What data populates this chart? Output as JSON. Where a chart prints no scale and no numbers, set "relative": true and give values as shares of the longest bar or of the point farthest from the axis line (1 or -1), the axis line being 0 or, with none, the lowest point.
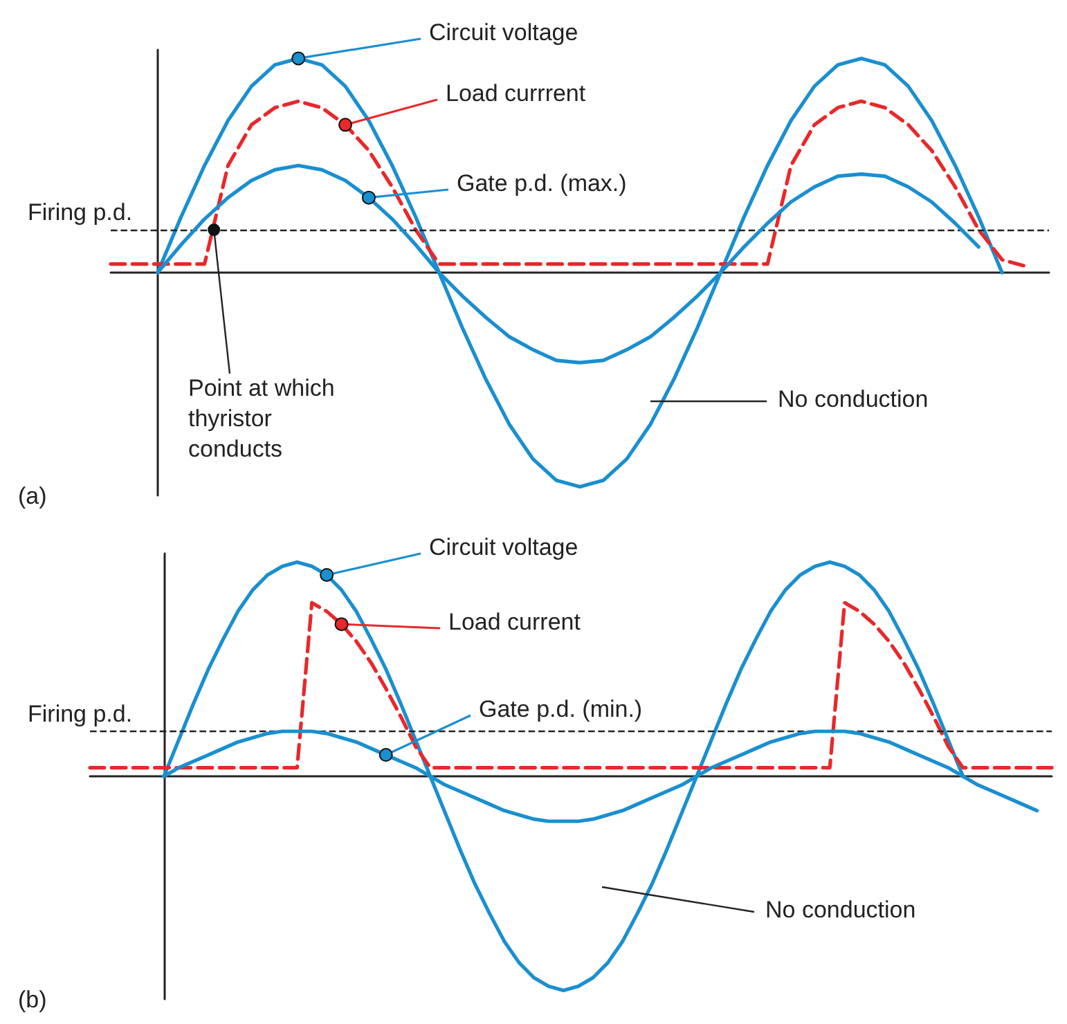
{
  "chart_data": [
    {
      "type": "line",
      "title": "(a)",
      "relative": true,
      "marker": "none",
      "categories": [
        null,
        null,
        null,
        null,
        null,
        null,
        null,
        null,
        null,
        null,
        null,
        null,
        null,
        null,
        null,
        null,
        null,
        null,
        null,
        null,
        null,
        null,
        null,
        null,
        null,
        null,
        null,
        null,
        null,
        null,
        null,
        null,
        null,
        null,
        null,
        null,
        null,
        null,
        null,
        null,
        null
      ],
      "series": [
        {
          "name": "Circuit voltage",
          "color": "#1a8fd0",
          "line_style": "solid",
          "values": [
            null,
            null,
            0,
            0.26,
            0.5,
            0.71,
            0.87,
            0.97,
            1,
            0.97,
            0.87,
            0.71,
            0.5,
            0.26,
            0,
            -0.26,
            -0.5,
            -0.71,
            -0.87,
            -0.97,
            -1,
            -0.97,
            -0.87,
            -0.71,
            -0.5,
            -0.26,
            0,
            0.26,
            0.5,
            0.71,
            0.87,
            0.97,
            1,
            0.97,
            0.87,
            0.71,
            0.5,
            0.26,
            0,
            null,
            null
          ]
        },
        {
          "name": "Load currrent",
          "color": "#e8282a",
          "line_style": "dashed",
          "values": [
            0.04,
            0.04,
            0.04,
            0.04,
            0.04,
            0.5,
            0.69,
            0.77,
            0.8,
            0.77,
            0.69,
            0.57,
            0.4,
            0.2,
            0.04,
            0.04,
            0.04,
            0.04,
            0.04,
            0.04,
            0.04,
            0.04,
            0.04,
            0.04,
            0.04,
            0.04,
            0.04,
            0.04,
            0.04,
            0.5,
            0.69,
            0.77,
            0.8,
            0.77,
            0.69,
            0.57,
            0.4,
            0.2,
            0.06,
            0.03,
            null
          ]
        },
        {
          "name": "Gate p.d. (max.)",
          "color": "#1a8fd0",
          "line_style": "solid",
          "values": [
            null,
            null,
            0,
            0.13,
            0.25,
            0.35,
            0.43,
            0.48,
            0.5,
            0.48,
            0.43,
            0.35,
            0.25,
            0.13,
            0,
            -0.11,
            -0.21,
            -0.3,
            -0.36,
            -0.41,
            -0.42,
            -0.41,
            -0.36,
            -0.3,
            -0.21,
            -0.11,
            0,
            0.12,
            0.23,
            0.33,
            0.4,
            0.45,
            0.46,
            0.45,
            0.4,
            0.33,
            0.23,
            0.12,
            null,
            null,
            null
          ]
        }
      ],
      "ref_lines": [
        {
          "axis": "y",
          "value": 0.2,
          "label": "Firing p.d.",
          "color": "#222222",
          "line_style": "dashed"
        }
      ],
      "annotations": [
        "Point at which thyristor conducts",
        "No conduction"
      ]
    },
    {
      "type": "line",
      "title": "(b)",
      "relative": true,
      "marker": "none",
      "categories": [
        null,
        null,
        null,
        null,
        null,
        null,
        null,
        null,
        null,
        null,
        null,
        null,
        null,
        null,
        null,
        null,
        null,
        null,
        null,
        null,
        null,
        null,
        null,
        null,
        null,
        null,
        null,
        null,
        null,
        null,
        null,
        null,
        null,
        null,
        null,
        null,
        null,
        null,
        null,
        null,
        null,
        null,
        null,
        null,
        null,
        null,
        null,
        null,
        null,
        null,
        null,
        null,
        null,
        null,
        null,
        null,
        null,
        null,
        null,
        null,
        null,
        null,
        null,
        null,
        null,
        null
      ],
      "series": [
        {
          "name": "Circuit voltage",
          "color": "#1a8fd0",
          "line_style": "solid",
          "values": [
            null,
            null,
            null,
            null,
            null,
            0,
            0.17,
            0.34,
            0.5,
            0.64,
            0.77,
            0.87,
            0.94,
            0.98,
            1,
            0.98,
            0.94,
            0.87,
            0.77,
            0.64,
            0.5,
            0.34,
            0.17,
            0,
            -0.17,
            -0.34,
            -0.5,
            -0.64,
            -0.77,
            -0.87,
            -0.94,
            -0.98,
            -1,
            -0.98,
            -0.94,
            -0.87,
            -0.77,
            -0.64,
            -0.5,
            -0.34,
            -0.17,
            0,
            0.17,
            0.34,
            0.5,
            0.64,
            0.77,
            0.87,
            0.94,
            0.98,
            1,
            0.98,
            0.94,
            0.87,
            0.77,
            0.64,
            0.5,
            0.34,
            0.17,
            0,
            null,
            null,
            null,
            null,
            null,
            null
          ]
        },
        {
          "name": "Load current",
          "color": "#e8282a",
          "line_style": "dashed",
          "values": [
            0.04,
            0.04,
            0.04,
            0.04,
            0.04,
            0.04,
            0.04,
            0.04,
            0.04,
            0.04,
            0.04,
            0.04,
            0.04,
            0.04,
            0.04,
            0.81,
            0.77,
            0.71,
            0.63,
            0.53,
            0.41,
            0.28,
            0.14,
            0.04,
            0.04,
            0.04,
            0.04,
            0.04,
            0.04,
            0.04,
            0.04,
            0.04,
            0.04,
            0.04,
            0.04,
            0.04,
            0.04,
            0.04,
            0.04,
            0.04,
            0.04,
            0.04,
            0.04,
            0.04,
            0.04,
            0.04,
            0.04,
            0.04,
            0.04,
            0.04,
            0.04,
            0.81,
            0.77,
            0.71,
            0.63,
            0.53,
            0.41,
            0.28,
            0.14,
            0.04,
            0.04,
            0.04,
            0.04,
            0.04,
            0.04,
            0.04
          ]
        },
        {
          "name": "Gate p.d. (min.)",
          "color": "#1a8fd0",
          "line_style": "solid",
          "values": [
            null,
            null,
            null,
            null,
            null,
            0,
            0.04,
            0.07,
            0.1,
            0.13,
            0.16,
            0.18,
            0.2,
            0.21,
            0.21,
            0.21,
            0.2,
            0.18,
            0.16,
            0.13,
            0.1,
            0.07,
            0.04,
            0,
            -0.04,
            -0.07,
            -0.1,
            -0.13,
            -0.16,
            -0.18,
            -0.2,
            -0.21,
            -0.21,
            -0.21,
            -0.2,
            -0.18,
            -0.16,
            -0.13,
            -0.1,
            -0.07,
            -0.04,
            0,
            0.04,
            0.07,
            0.1,
            0.13,
            0.16,
            0.18,
            0.2,
            0.21,
            0.21,
            0.21,
            0.2,
            0.18,
            0.16,
            0.13,
            0.1,
            0.07,
            0.04,
            0,
            -0.04,
            -0.07,
            -0.1,
            -0.13,
            -0.16,
            null
          ]
        }
      ],
      "ref_lines": [
        {
          "axis": "y",
          "value": 0.21,
          "label": "Firing p.d.",
          "color": "#222222",
          "line_style": "dashed"
        }
      ],
      "annotations": [
        "No conduction"
      ]
    }
  ]
}
